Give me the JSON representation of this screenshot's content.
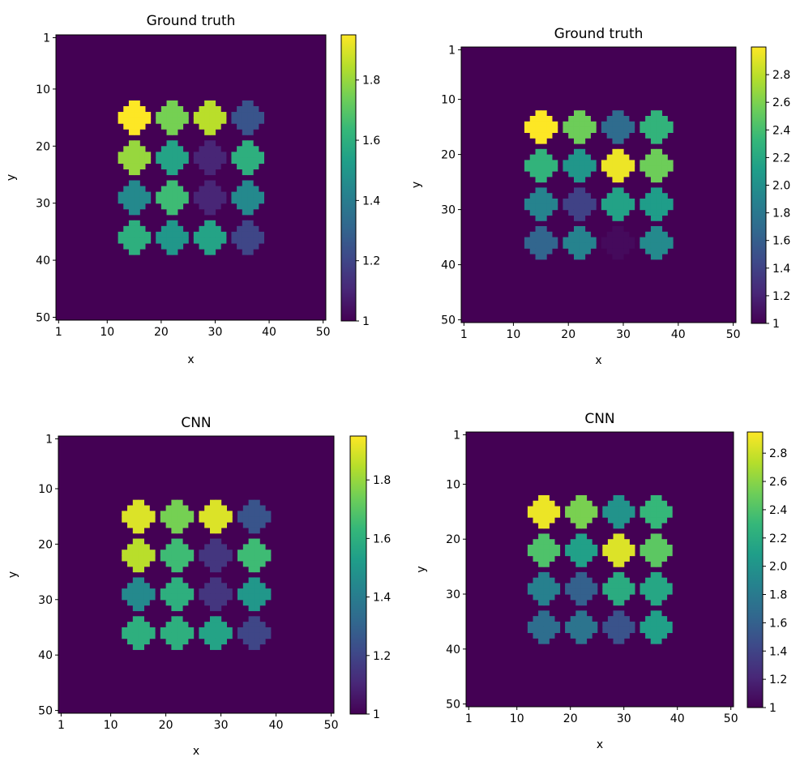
{
  "chart_data": [
    {
      "type": "heatmap",
      "title": "Ground truth",
      "xlabel": "x",
      "ylabel": "y",
      "xticks": [
        "1",
        "10",
        "20",
        "30",
        "40",
        "50"
      ],
      "yticks": [
        "1",
        "10",
        "20",
        "30",
        "40",
        "50"
      ],
      "xlim": [
        1,
        50
      ],
      "ylim": [
        1,
        50
      ],
      "background_value": 1.0,
      "colorbar": {
        "min": 1.0,
        "max": 1.95,
        "ticks": [
          "1",
          "1.2",
          "1.4",
          "1.6",
          "1.8"
        ],
        "tick_values": [
          1.0,
          1.2,
          1.4,
          1.6,
          1.8
        ]
      },
      "circle_centers_x": [
        14.5,
        21.5,
        28.5,
        35.5
      ],
      "circle_centers_y": [
        14.5,
        21.5,
        28.5,
        35.5
      ],
      "circle_radius": 2.6,
      "circle_values": [
        [
          1.95,
          1.75,
          1.85,
          1.25
        ],
        [
          1.8,
          1.55,
          1.1,
          1.6
        ],
        [
          1.45,
          1.65,
          1.1,
          1.45
        ],
        [
          1.6,
          1.5,
          1.55,
          1.2
        ]
      ]
    },
    {
      "type": "heatmap",
      "title": "Ground truth",
      "xlabel": "x",
      "ylabel": "y",
      "xticks": [
        "1",
        "10",
        "20",
        "30",
        "40",
        "50"
      ],
      "yticks": [
        "1",
        "10",
        "20",
        "30",
        "40",
        "50"
      ],
      "xlim": [
        1,
        50
      ],
      "ylim": [
        1,
        50
      ],
      "background_value": 1.0,
      "colorbar": {
        "min": 1.0,
        "max": 3.0,
        "ticks": [
          "1",
          "1.2",
          "1.4",
          "1.6",
          "1.8",
          "2.0",
          "2.2",
          "2.4",
          "2.6",
          "2.8"
        ],
        "tick_values": [
          1.0,
          1.2,
          1.4,
          1.6,
          1.8,
          2.0,
          2.2,
          2.4,
          2.6,
          2.8
        ]
      },
      "circle_centers_x": [
        14.5,
        21.5,
        28.5,
        35.5
      ],
      "circle_centers_y": [
        14.5,
        21.5,
        28.5,
        35.5
      ],
      "circle_radius": 2.6,
      "circle_values": [
        [
          3.0,
          2.55,
          1.7,
          2.3
        ],
        [
          2.3,
          2.05,
          2.95,
          2.55
        ],
        [
          1.9,
          1.4,
          2.15,
          2.1
        ],
        [
          1.65,
          1.9,
          1.05,
          1.95
        ]
      ]
    },
    {
      "type": "heatmap",
      "title": "CNN",
      "xlabel": "x",
      "ylabel": "y",
      "xticks": [
        "1",
        "10",
        "20",
        "30",
        "40",
        "50"
      ],
      "yticks": [
        "1",
        "10",
        "20",
        "30",
        "40",
        "50"
      ],
      "xlim": [
        1,
        50
      ],
      "ylim": [
        1,
        50
      ],
      "background_value": 1.0,
      "colorbar": {
        "min": 1.0,
        "max": 1.95,
        "ticks": [
          "1",
          "1.2",
          "1.4",
          "1.6",
          "1.8"
        ],
        "tick_values": [
          1.0,
          1.2,
          1.4,
          1.6,
          1.8
        ]
      },
      "circle_centers_x": [
        14.5,
        21.5,
        28.5,
        35.5
      ],
      "circle_centers_y": [
        14.5,
        21.5,
        28.5,
        35.5
      ],
      "circle_radius": 2.6,
      "circle_values": [
        [
          1.9,
          1.75,
          1.9,
          1.25
        ],
        [
          1.85,
          1.65,
          1.15,
          1.65
        ],
        [
          1.45,
          1.6,
          1.15,
          1.5
        ],
        [
          1.6,
          1.6,
          1.55,
          1.2
        ]
      ]
    },
    {
      "type": "heatmap",
      "title": "CNN",
      "xlabel": "x",
      "ylabel": "y",
      "xticks": [
        "1",
        "10",
        "20",
        "30",
        "40",
        "50"
      ],
      "yticks": [
        "1",
        "10",
        "20",
        "30",
        "40",
        "50"
      ],
      "xlim": [
        1,
        50
      ],
      "ylim": [
        1,
        50
      ],
      "background_value": 1.0,
      "colorbar": {
        "min": 1.0,
        "max": 2.95,
        "ticks": [
          "1",
          "1.2",
          "1.4",
          "1.6",
          "1.8",
          "2.0",
          "2.2",
          "2.4",
          "2.6",
          "2.8"
        ],
        "tick_values": [
          1.0,
          1.2,
          1.4,
          1.6,
          1.8,
          2.0,
          2.2,
          2.4,
          2.6,
          2.8
        ]
      },
      "circle_centers_x": [
        14.5,
        21.5,
        28.5,
        35.5
      ],
      "circle_centers_y": [
        14.5,
        21.5,
        28.5,
        35.5
      ],
      "circle_radius": 2.6,
      "circle_values": [
        [
          2.9,
          2.55,
          2.0,
          2.3
        ],
        [
          2.4,
          2.1,
          2.85,
          2.45
        ],
        [
          1.85,
          1.6,
          2.2,
          2.15
        ],
        [
          1.7,
          1.75,
          1.5,
          2.1
        ]
      ]
    }
  ],
  "colors": {
    "viridis": [
      "#440154",
      "#482878",
      "#3e4989",
      "#31688e",
      "#26828e",
      "#1f9e89",
      "#35b779",
      "#6ece58",
      "#b5de2b",
      "#fde725"
    ],
    "axis_line": "#000000",
    "background": "#ffffff"
  }
}
